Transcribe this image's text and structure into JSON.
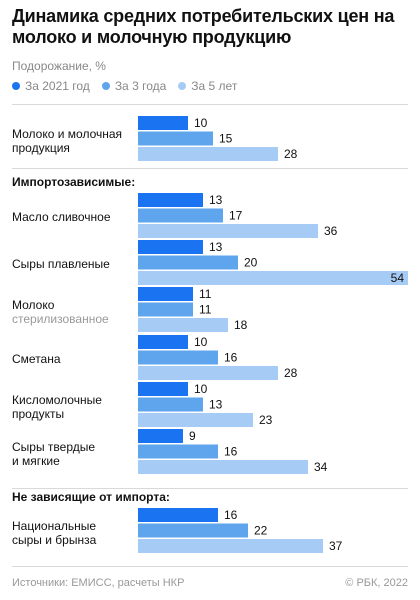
{
  "header": {
    "title": "Динамика средних потребительских цен на молоко и молочную продукцию",
    "subtitle": "Подорожание, %"
  },
  "footer": {
    "source": "Источники: ЕМИСС, расчеты НКР",
    "copyright": "© РБК, 2022"
  },
  "colors": {
    "y2021": "#1a73f0",
    "y3": "#5ea5ee",
    "y5": "#a6ccf6"
  },
  "chart_data": {
    "type": "bar",
    "orientation": "horizontal",
    "xlim": [
      0,
      54
    ],
    "series": [
      {
        "name": "За 2021 год"
      },
      {
        "name": "За 3 года"
      },
      {
        "name": "За 5 лет"
      }
    ],
    "sections": [
      {
        "header": "",
        "categories": [
          {
            "line1": "Молоко и молочная",
            "line2": "продукция",
            "values": [
              10,
              15,
              28
            ]
          }
        ]
      },
      {
        "header": "Импортозависимые:",
        "categories": [
          {
            "line1": "Масло сливочное",
            "line2": "",
            "values": [
              13,
              17,
              36
            ]
          },
          {
            "line1": "Сыры плавленые",
            "line2": "",
            "values": [
              13,
              20,
              54
            ]
          },
          {
            "line1": "Молоко",
            "line2": "стерилизованное",
            "values": [
              11,
              11,
              18
            ]
          },
          {
            "line1": "Сметана",
            "line2": "",
            "values": [
              10,
              16,
              28
            ]
          },
          {
            "line1": "Кисломолочные",
            "line2": "продукты",
            "values": [
              10,
              13,
              23
            ]
          },
          {
            "line1": "Сыры твердые",
            "line2": "и мягкие",
            "values": [
              9,
              16,
              34
            ]
          }
        ]
      },
      {
        "header": "Не зависящие от импорта:",
        "categories": [
          {
            "line1": "Национальные",
            "line2": "сыры и брынза",
            "values": [
              16,
              22,
              37
            ]
          }
        ]
      }
    ]
  }
}
